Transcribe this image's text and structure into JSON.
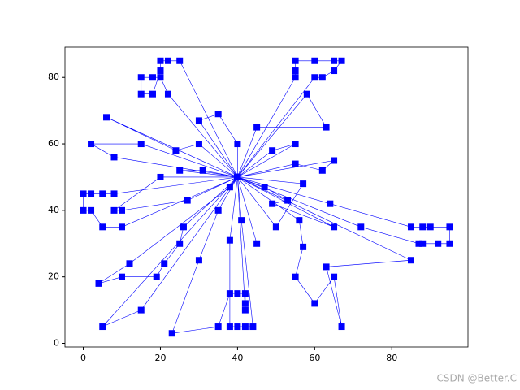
{
  "chart_data": {
    "type": "line",
    "marker": "square",
    "annotation": "CSDN @Better.C",
    "xlim": [
      -4.75,
      99.75
    ],
    "ylim": [
      -1.1,
      89.1
    ],
    "xticks": [
      0,
      20,
      40,
      60,
      80
    ],
    "yticks": [
      0,
      20,
      40,
      60,
      80
    ],
    "series": [
      {
        "color": "#0000ff",
        "x": [
          40,
          22,
          20,
          18,
          15,
          15,
          18,
          20,
          20,
          22,
          25,
          40
        ],
        "values": [
          50,
          75,
          80,
          80,
          80,
          75,
          75,
          82,
          85,
          85,
          85,
          50
        ]
      },
      {
        "color": "#0000ff",
        "x": [
          40,
          30,
          35,
          40,
          40
        ],
        "values": [
          50,
          67,
          69,
          60,
          50
        ]
      },
      {
        "color": "#0000ff",
        "x": [
          40,
          6,
          24,
          30,
          40
        ],
        "values": [
          50,
          68,
          58,
          60,
          50
        ]
      },
      {
        "color": "#0000ff",
        "x": [
          40,
          15,
          2,
          8,
          40
        ],
        "values": [
          50,
          60,
          60,
          56,
          50
        ]
      },
      {
        "color": "#0000ff",
        "x": [
          40,
          25,
          31,
          40
        ],
        "values": [
          50,
          52,
          52,
          50
        ]
      },
      {
        "color": "#0000ff",
        "x": [
          40,
          8,
          5,
          2,
          0,
          0,
          2,
          5,
          10,
          40
        ],
        "values": [
          50,
          45,
          45,
          45,
          45,
          40,
          40,
          35,
          35,
          50
        ]
      },
      {
        "color": "#0000ff",
        "x": [
          40,
          20,
          8,
          10,
          27,
          40
        ],
        "values": [
          50,
          50,
          40,
          40,
          43,
          50
        ]
      },
      {
        "color": "#0000ff",
        "x": [
          40,
          26,
          25,
          21,
          19,
          10,
          4,
          12,
          38,
          40
        ],
        "values": [
          50,
          35,
          30,
          24,
          20,
          20,
          18,
          24,
          47,
          50
        ]
      },
      {
        "color": "#0000ff",
        "x": [
          40,
          35,
          30,
          23,
          35,
          38,
          40,
          42,
          42,
          42,
          40
        ],
        "values": [
          50,
          40,
          25,
          3,
          5,
          15,
          15,
          15,
          12,
          10,
          50
        ]
      },
      {
        "color": "#0000ff",
        "x": [
          40,
          38,
          38,
          40,
          42,
          44,
          41,
          40
        ],
        "values": [
          50,
          31,
          5,
          5,
          5,
          5,
          37,
          50
        ]
      },
      {
        "color": "#0000ff",
        "x": [
          40,
          5,
          15,
          40
        ],
        "values": [
          50,
          5,
          10,
          50
        ]
      },
      {
        "color": "#0000ff",
        "x": [
          40,
          45,
          40
        ],
        "values": [
          50,
          30,
          50
        ]
      },
      {
        "color": "#0000ff",
        "x": [
          40,
          55,
          55,
          55,
          60,
          65,
          67,
          65,
          62,
          60,
          40
        ],
        "values": [
          50,
          80,
          82,
          85,
          85,
          85,
          85,
          82,
          80,
          80,
          50
        ]
      },
      {
        "color": "#0000ff",
        "x": [
          40,
          58,
          63,
          45,
          40
        ],
        "values": [
          50,
          75,
          65,
          65,
          50
        ]
      },
      {
        "color": "#0000ff",
        "x": [
          40,
          49,
          55,
          40
        ],
        "values": [
          50,
          58,
          60,
          50
        ]
      },
      {
        "color": "#0000ff",
        "x": [
          40,
          55,
          62,
          65,
          40
        ],
        "values": [
          50,
          54,
          52,
          55,
          50
        ]
      },
      {
        "color": "#0000ff",
        "x": [
          40,
          57,
          50,
          40
        ],
        "values": [
          50,
          48,
          35,
          50
        ]
      },
      {
        "color": "#0000ff",
        "x": [
          40,
          64,
          85,
          88,
          90,
          95,
          95,
          92,
          88,
          87,
          72,
          40
        ],
        "values": [
          50,
          42,
          35,
          35,
          35,
          35,
          30,
          30,
          30,
          30,
          35,
          50
        ]
      },
      {
        "color": "#0000ff",
        "x": [
          40,
          47,
          53,
          49,
          65,
          40
        ],
        "values": [
          50,
          47,
          43,
          42,
          35,
          50
        ]
      },
      {
        "color": "#0000ff",
        "x": [
          40,
          56,
          57,
          55,
          60,
          65,
          67,
          63,
          85,
          40
        ],
        "values": [
          50,
          37,
          29,
          20,
          12,
          20,
          5,
          23,
          25,
          50
        ]
      }
    ]
  }
}
